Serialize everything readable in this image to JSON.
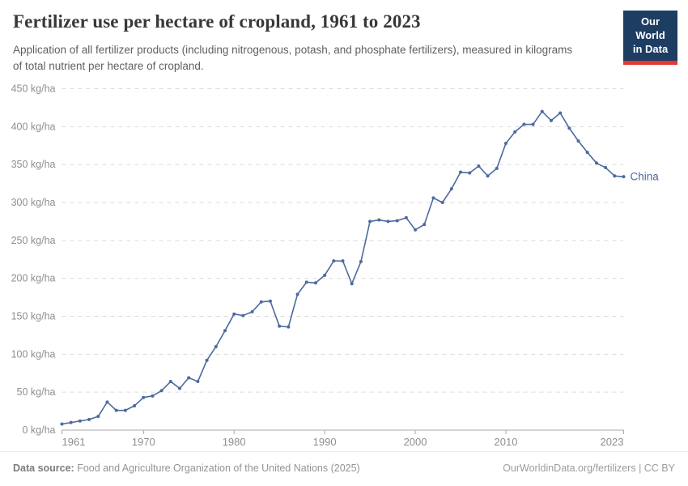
{
  "header": {
    "title": "Fertilizer use per hectare of cropland, 1961 to 2023",
    "subtitle": "Application of all fertilizer products (including nitrogenous, potash, and phosphate fertilizers), measured in kilograms of total nutrient per hectare of cropland.",
    "logo": {
      "line1": "Our World",
      "line2": "in Data"
    }
  },
  "chart_data": {
    "type": "line",
    "title": "Fertilizer use per hectare of cropland, 1961 to 2023",
    "unit": "kg/ha",
    "xlabel": "",
    "ylabel": "kg/ha",
    "xlim": [
      1961,
      2023
    ],
    "ylim": [
      0,
      450
    ],
    "grid": "horizontal-dashed",
    "legend_position": "end-of-line-label",
    "x": [
      1961,
      1962,
      1963,
      1964,
      1965,
      1966,
      1967,
      1968,
      1969,
      1970,
      1971,
      1972,
      1973,
      1974,
      1975,
      1976,
      1977,
      1978,
      1979,
      1980,
      1981,
      1982,
      1983,
      1984,
      1985,
      1986,
      1987,
      1988,
      1989,
      1990,
      1991,
      1992,
      1993,
      1994,
      1995,
      1996,
      1997,
      1998,
      1999,
      2000,
      2001,
      2002,
      2003,
      2004,
      2005,
      2006,
      2007,
      2008,
      2009,
      2010,
      2011,
      2012,
      2013,
      2014,
      2015,
      2016,
      2017,
      2018,
      2019,
      2020,
      2021,
      2022,
      2023
    ],
    "series": [
      {
        "name": "China",
        "color": "#4c6a9e",
        "values": [
          8,
          10,
          12,
          14,
          18,
          37,
          26,
          26,
          32,
          43,
          45,
          52,
          64,
          55,
          69,
          64,
          92,
          110,
          131,
          153,
          151,
          156,
          169,
          170,
          137,
          136,
          179,
          195,
          194,
          204,
          223,
          223,
          193,
          222,
          275,
          277,
          275,
          276,
          280,
          264,
          271,
          306,
          300,
          318,
          340,
          339,
          348,
          335,
          345,
          378,
          393,
          403,
          403,
          420,
          408,
          418,
          398,
          381,
          366,
          352,
          346,
          335,
          334
        ]
      }
    ],
    "y_ticks": {
      "values": [
        0,
        50,
        100,
        150,
        200,
        250,
        300,
        350,
        400,
        450
      ],
      "labels": [
        "0 kg/ha",
        "50 kg/ha",
        "100 kg/ha",
        "150 kg/ha",
        "200 kg/ha",
        "250 kg/ha",
        "300 kg/ha",
        "350 kg/ha",
        "400 kg/ha",
        "450 kg/ha"
      ]
    },
    "x_ticks": {
      "values": [
        1961,
        1970,
        1980,
        1990,
        2000,
        2010,
        2023
      ],
      "labels": [
        "1961",
        "1970",
        "1980",
        "1990",
        "2000",
        "2010",
        "2023"
      ]
    }
  },
  "colors": {
    "series_line": "#4c6a9e",
    "gridline": "#dcdcdc",
    "axis_line": "#a8a8a8",
    "tick_text": "#8f8f8f",
    "logo_bg": "#1d3d63",
    "logo_bar": "#e0392f"
  },
  "footer": {
    "datasource_label": "Data source:",
    "datasource_text": " Food and Agriculture Organization of the United Nations (2025)",
    "credit": "OurWorldinData.org/fertilizers | CC BY"
  }
}
